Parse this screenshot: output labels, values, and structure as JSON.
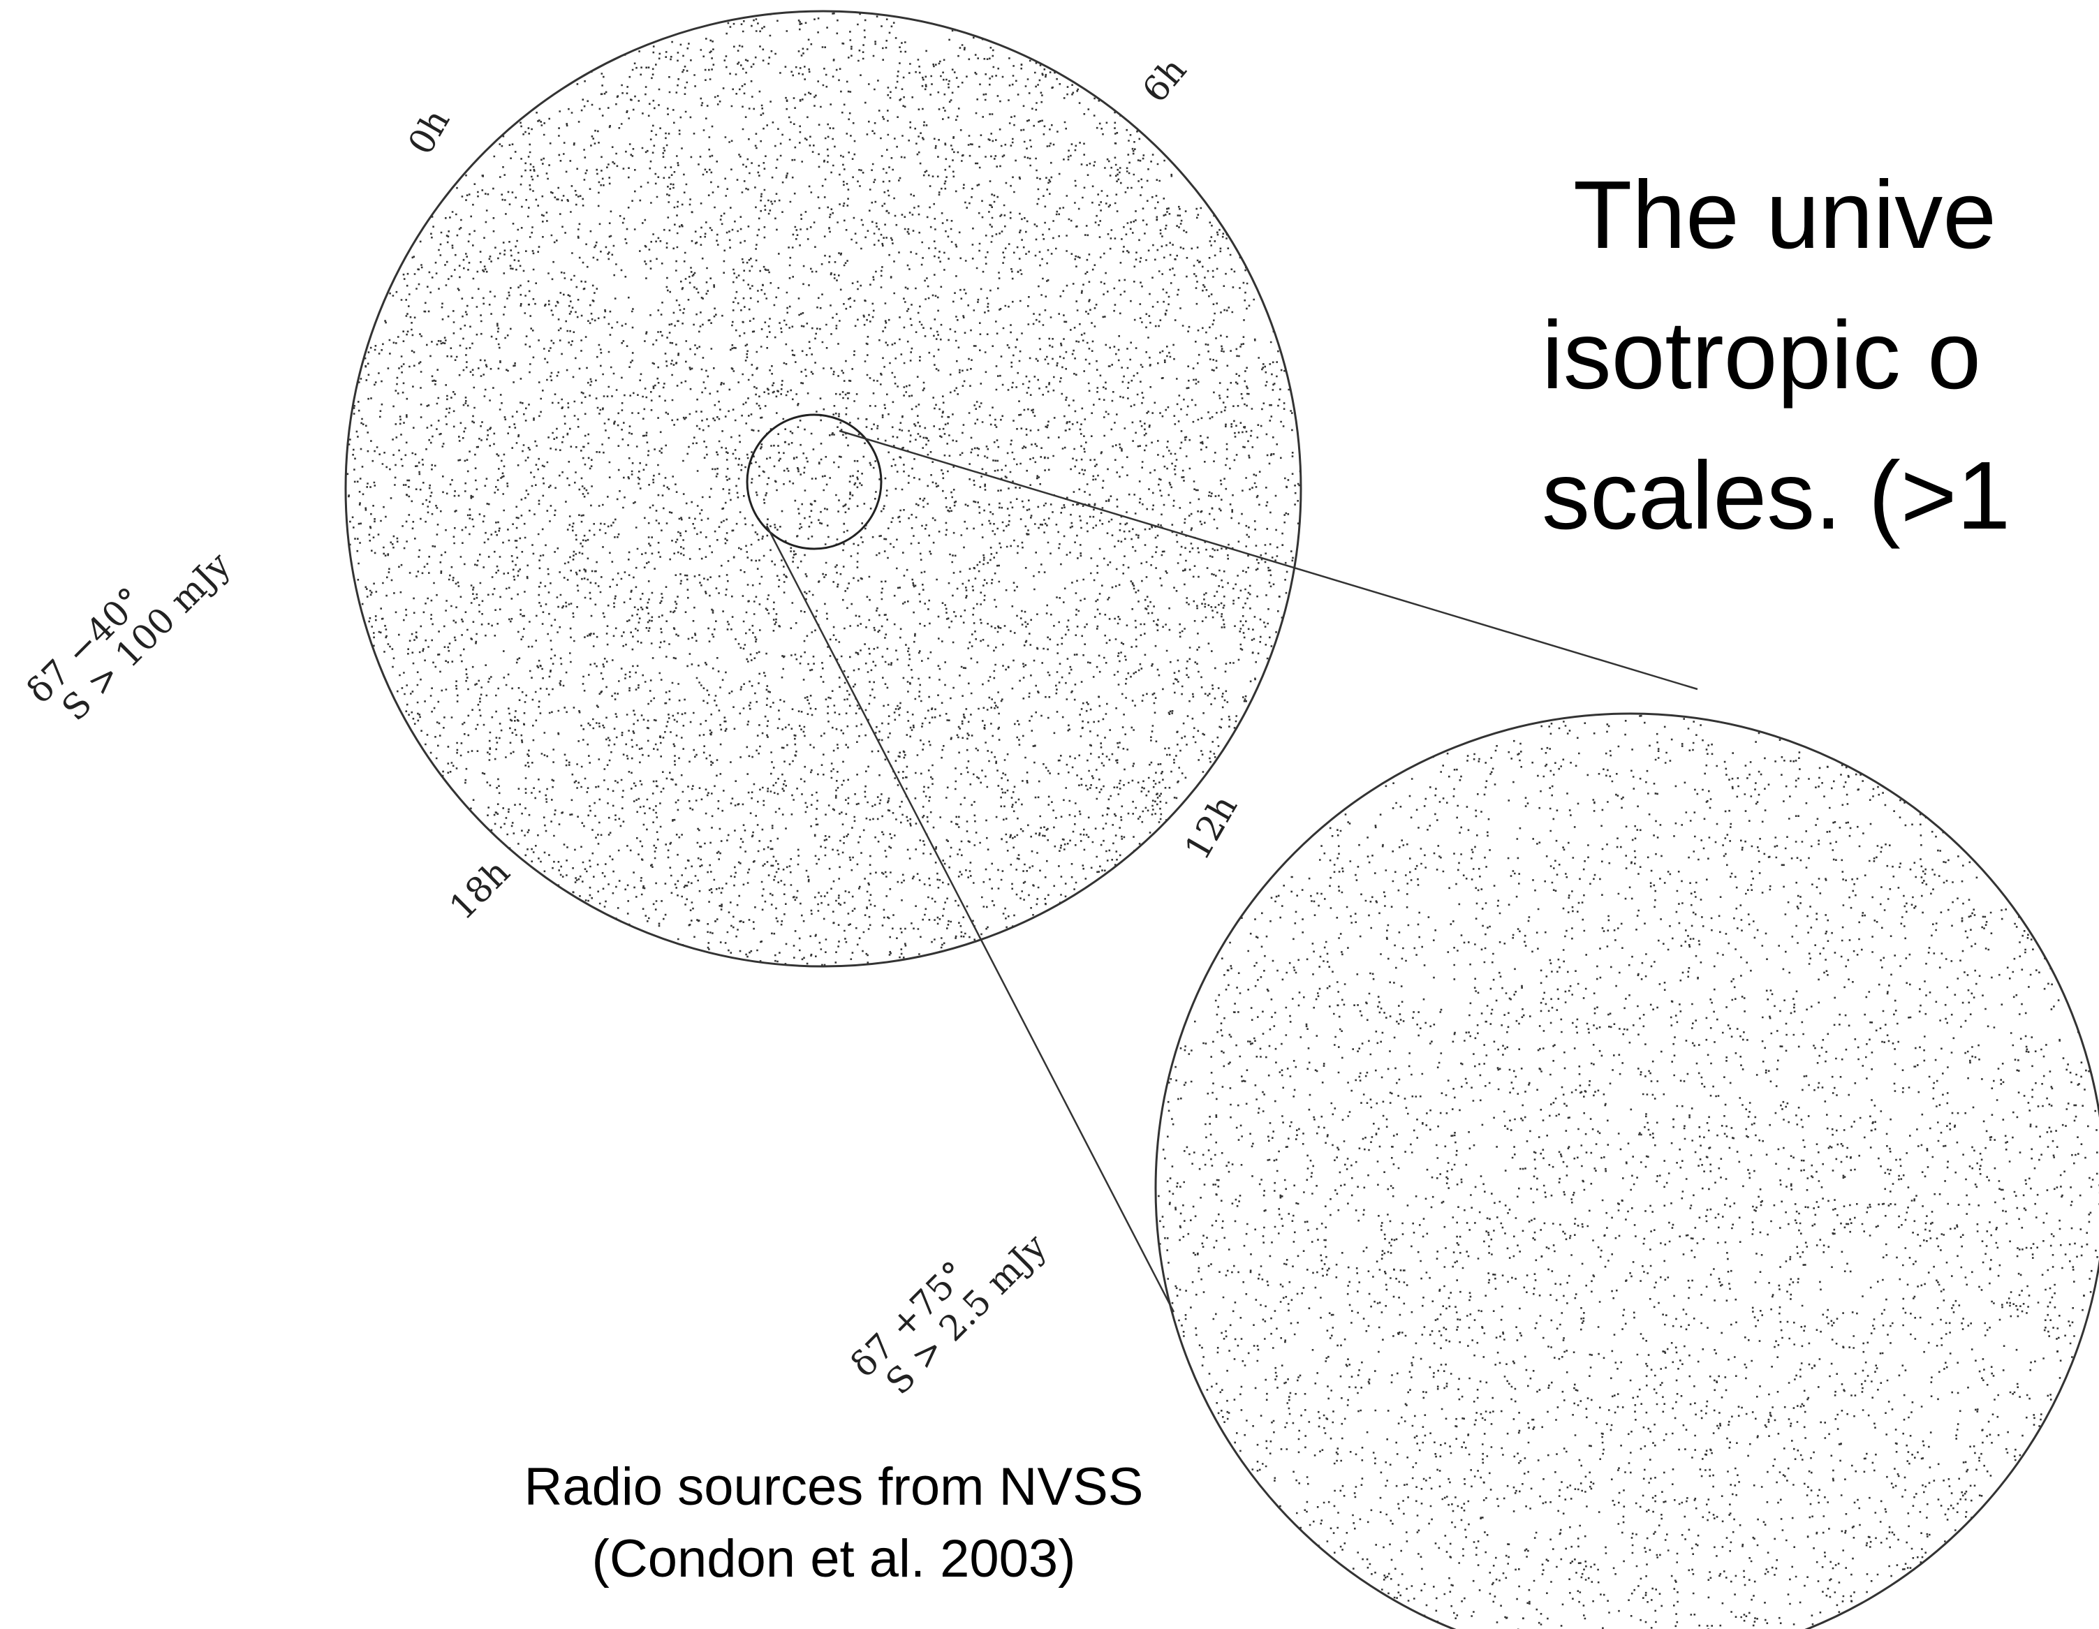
{
  "slide": {
    "title_lines": [
      "The unive",
      "isotropic o",
      "scales. (>1"
    ],
    "map_labels": [
      "0h",
      "6h",
      "12h",
      "18h"
    ],
    "survey_wide": [
      "δ7 −40°",
      "S > 100 mJy"
    ],
    "survey_zoom": [
      "δ7 +75°",
      "S > 2.5 mJy"
    ],
    "caption": [
      "Radio sources from NVSS",
      "(Condon et al. 2003)"
    ]
  }
}
